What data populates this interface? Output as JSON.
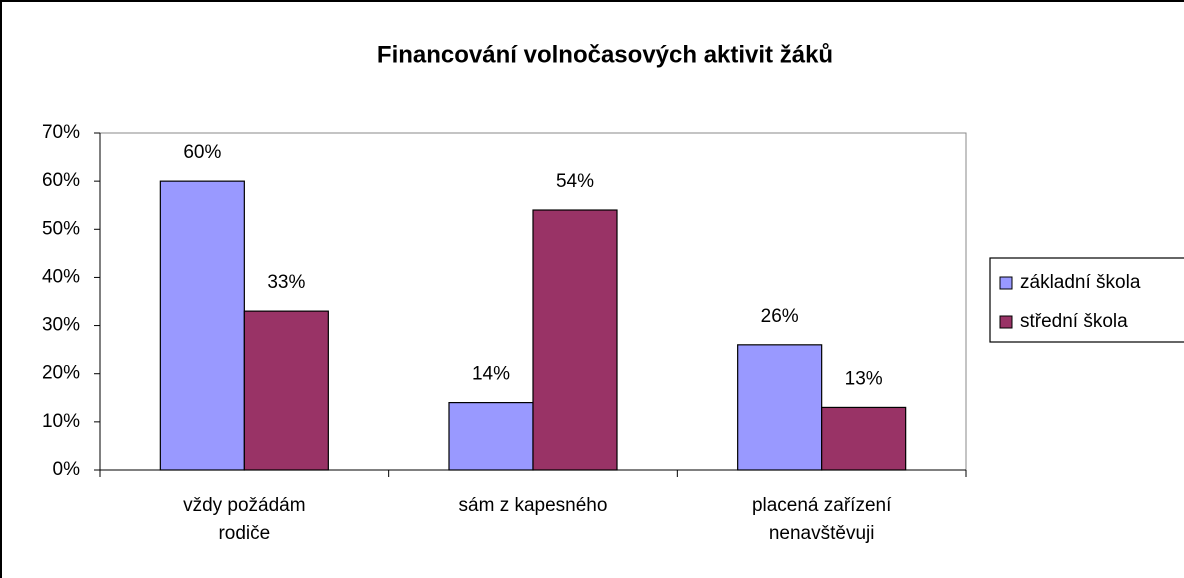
{
  "chart_data": {
    "type": "bar",
    "title": "Financování volnočasových aktivit žáků",
    "categories": [
      "vždy požádám rodiče",
      "sám z kapesného",
      "placená zařízení nenavštěvuji"
    ],
    "series": [
      {
        "name": "základní škola",
        "color": "#9999ff",
        "values": [
          60,
          14,
          26
        ],
        "value_labels": [
          "60%",
          "14%",
          "26%"
        ]
      },
      {
        "name": "střední škola",
        "color": "#993366",
        "values": [
          33,
          54,
          13
        ],
        "value_labels": [
          "33%",
          "54%",
          "13%"
        ]
      }
    ],
    "ylim": [
      0,
      70
    ],
    "yticks": [
      {
        "value": 0,
        "label": "0%"
      },
      {
        "value": 10,
        "label": "10%"
      },
      {
        "value": 20,
        "label": "20%"
      },
      {
        "value": 30,
        "label": "30%"
      },
      {
        "value": 40,
        "label": "40%"
      },
      {
        "value": 50,
        "label": "50%"
      },
      {
        "value": 60,
        "label": "60%"
      },
      {
        "value": 70,
        "label": "70%"
      }
    ],
    "grid": false,
    "legend": "right"
  }
}
